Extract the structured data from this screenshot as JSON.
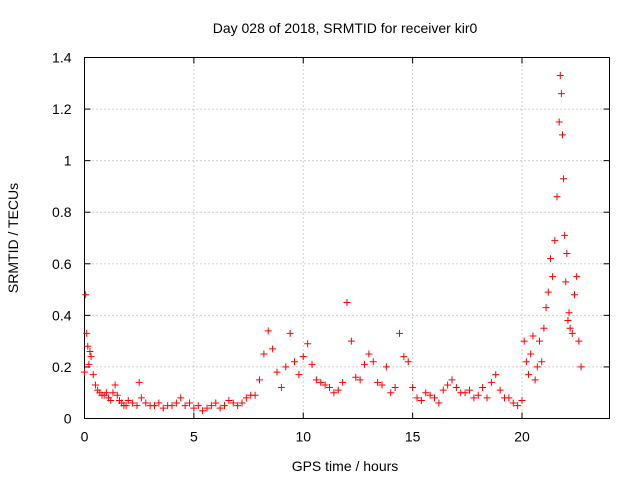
{
  "chart_data": {
    "type": "scatter",
    "title": "Day 028 of 2018, SRMTID for receiver kir0",
    "xlabel": "GPS time / hours",
    "ylabel": "SRMTID / TECUs",
    "xlim": [
      0,
      24
    ],
    "ylim": [
      0,
      1.4
    ],
    "x_ticks": [
      0,
      5,
      10,
      15,
      20
    ],
    "y_ticks": [
      0,
      0.2,
      0.4,
      0.6,
      0.8,
      1.0,
      1.2,
      1.4
    ],
    "x_tick_labels": [
      "0",
      "5",
      "10",
      "15",
      "20"
    ],
    "y_tick_labels": [
      "0",
      "0.2",
      "0.4",
      "0.6",
      "0.8",
      "1",
      "1.2",
      "1.4"
    ],
    "grid": true,
    "marker": "+",
    "series": [
      {
        "name": "SRMTID",
        "color": "#ff0000",
        "x": [
          0.0,
          0.05,
          0.1,
          0.15,
          0.2,
          0.25,
          0.3,
          0.4,
          0.5,
          0.6,
          0.7,
          0.8,
          0.9,
          1.0,
          1.1,
          1.2,
          1.3,
          1.4,
          1.5,
          1.6,
          1.7,
          1.8,
          1.9,
          2.0,
          2.2,
          2.4,
          2.5,
          2.6,
          2.8,
          3.0,
          3.2,
          3.4,
          3.6,
          3.8,
          4.0,
          4.2,
          4.4,
          4.6,
          4.8,
          5.0,
          5.2,
          5.4,
          5.6,
          5.8,
          6.0,
          6.2,
          6.4,
          6.6,
          6.8,
          7.0,
          7.2,
          7.4,
          7.6,
          7.8,
          8.0,
          8.2,
          8.4,
          8.6,
          8.8,
          9.0,
          9.2,
          9.4,
          9.6,
          9.8,
          10.0,
          10.2,
          10.4,
          10.6,
          10.8,
          11.0,
          11.2,
          11.4,
          11.6,
          11.8,
          12.0,
          12.2,
          12.4,
          12.6,
          12.8,
          13.0,
          13.2,
          13.4,
          13.6,
          13.8,
          14.0,
          14.2,
          14.4,
          14.6,
          14.8,
          15.0,
          15.2,
          15.4,
          15.6,
          15.8,
          16.0,
          16.2,
          16.4,
          16.6,
          16.8,
          17.0,
          17.2,
          17.4,
          17.6,
          17.8,
          18.0,
          18.2,
          18.4,
          18.6,
          18.8,
          19.0,
          19.2,
          19.4,
          19.6,
          19.8,
          20.0,
          20.1,
          20.2,
          20.3,
          20.4,
          20.5,
          20.6,
          20.7,
          20.8,
          20.9,
          21.0,
          21.1,
          21.2,
          21.3,
          21.4,
          21.5,
          21.6,
          21.7,
          21.75,
          21.8,
          21.85,
          21.9,
          21.95,
          22.0,
          22.05,
          22.1,
          22.15,
          22.2,
          22.3,
          22.4,
          22.5,
          22.6,
          22.7
        ],
        "y": [
          0.18,
          0.48,
          0.33,
          0.28,
          0.21,
          0.26,
          0.24,
          0.17,
          0.13,
          0.11,
          0.1,
          0.09,
          0.09,
          0.1,
          0.08,
          0.07,
          0.1,
          0.13,
          0.09,
          0.07,
          0.06,
          0.05,
          0.05,
          0.07,
          0.06,
          0.05,
          0.14,
          0.08,
          0.06,
          0.05,
          0.05,
          0.06,
          0.04,
          0.05,
          0.05,
          0.06,
          0.08,
          0.05,
          0.06,
          0.04,
          0.05,
          0.03,
          0.04,
          0.05,
          0.06,
          0.04,
          0.05,
          0.07,
          0.06,
          0.05,
          0.06,
          0.08,
          0.09,
          0.09,
          0.15,
          0.25,
          0.34,
          0.27,
          0.18,
          0.12,
          0.2,
          0.33,
          0.22,
          0.17,
          0.24,
          0.29,
          0.21,
          0.15,
          0.14,
          0.13,
          0.12,
          0.1,
          0.11,
          0.14,
          0.45,
          0.3,
          0.16,
          0.15,
          0.21,
          0.25,
          0.22,
          0.14,
          0.13,
          0.2,
          0.1,
          0.12,
          0.33,
          0.24,
          0.22,
          0.12,
          0.08,
          0.07,
          0.1,
          0.09,
          0.08,
          0.06,
          0.11,
          0.13,
          0.15,
          0.12,
          0.1,
          0.1,
          0.11,
          0.08,
          0.09,
          0.12,
          0.08,
          0.14,
          0.17,
          0.11,
          0.08,
          0.08,
          0.06,
          0.05,
          0.07,
          0.3,
          0.22,
          0.17,
          0.25,
          0.32,
          0.15,
          0.2,
          0.3,
          0.22,
          0.35,
          0.43,
          0.49,
          0.62,
          0.55,
          0.69,
          0.86,
          1.15,
          1.33,
          1.26,
          1.1,
          0.93,
          0.71,
          0.53,
          0.64,
          0.38,
          0.41,
          0.35,
          0.33,
          0.48,
          0.55,
          0.3,
          0.2
        ]
      }
    ]
  }
}
